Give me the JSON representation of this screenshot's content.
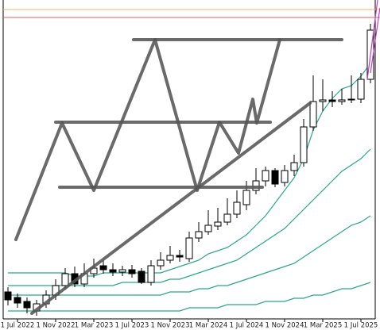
{
  "chart_data": {
    "type": "candlestick",
    "ylim": [
      0,
      100
    ],
    "xtick_labels": [
      "1 Jul 2022",
      "1 Nov 2022",
      "1 Mar 2023",
      "1 Jul 2023",
      "1 Nov 2023",
      "1 Mar 2024",
      "1 Jul 2024",
      "1 Nov 2024",
      "1 Mar 2025",
      "1 Jul 2025"
    ],
    "candles": {
      "open": [
        8,
        6.25,
        5,
        2,
        4.25,
        7,
        10,
        13.75,
        10.5,
        13.75,
        16.25,
        15,
        14.25,
        15,
        14.5,
        11,
        16.25,
        18,
        19.5,
        18.5,
        25,
        27,
        28.75,
        30,
        32.5,
        35.5,
        40,
        43,
        46.25,
        42.5,
        46.25,
        48.75,
        60,
        68,
        68.5,
        68,
        68.5,
        68.75,
        75
      ],
      "high": [
        9.5,
        7.5,
        6.25,
        5.5,
        8.5,
        12,
        15.5,
        16,
        17,
        18.5,
        18,
        17,
        16.25,
        16.5,
        15.5,
        18,
        20.5,
        22.5,
        21.25,
        27,
        30,
        33.75,
        34.5,
        37.5,
        40,
        43,
        47,
        47.5,
        47,
        48,
        51.25,
        62.5,
        76.25,
        75,
        71.25,
        72,
        76.25,
        77,
        92.5
      ],
      "low": [
        3.75,
        3,
        1.25,
        0.5,
        3,
        5.5,
        8.75,
        9.5,
        9.5,
        12.5,
        13.75,
        13,
        13,
        12.5,
        10.5,
        10,
        15,
        17,
        17.5,
        17.5,
        23.75,
        26,
        27.5,
        29,
        31.25,
        33.75,
        38.75,
        41.25,
        41,
        41.25,
        44.5,
        47.5,
        58.75,
        65,
        66.25,
        67,
        67.5,
        67.5,
        73.75
      ],
      "close": [
        5.5,
        4.5,
        3,
        4.25,
        7,
        10,
        13.75,
        10.5,
        13.75,
        15.5,
        15,
        14.25,
        15,
        13.75,
        11,
        16.25,
        18,
        19.5,
        19,
        25,
        27,
        29,
        30,
        32.5,
        36.25,
        40,
        43,
        46.25,
        42,
        46.25,
        48.75,
        60,
        68,
        68.5,
        68,
        68.5,
        68.75,
        75,
        90.5
      ]
    },
    "bull_color": "#ffffff",
    "bear_color": "#000000",
    "lines": [
      {
        "color": "#2aa88a",
        "values": [
          14,
          14,
          14,
          14,
          14,
          14,
          14,
          13,
          13,
          13,
          14,
          14,
          14,
          14,
          14,
          14,
          14,
          15,
          16,
          17,
          18,
          20,
          21,
          22,
          24,
          26,
          29,
          32,
          36,
          40,
          44,
          50,
          59,
          65,
          69,
          72,
          73,
          76,
          80
        ]
      },
      {
        "color": "#2aa88a",
        "values": [
          10,
          10,
          10,
          10,
          10,
          10,
          10,
          10,
          10,
          10,
          10,
          10,
          11,
          11,
          11,
          11,
          11,
          12,
          12,
          13,
          14,
          15,
          16,
          17,
          18,
          20,
          22,
          24,
          26,
          28,
          31,
          34,
          37,
          40,
          43,
          46,
          48,
          50,
          53
        ]
      },
      {
        "color": "#2aa88a",
        "values": [
          7,
          7,
          7,
          7,
          7,
          7,
          7,
          7,
          7,
          7,
          7,
          7,
          7,
          7,
          7,
          7,
          7,
          8,
          8,
          8,
          9,
          9,
          10,
          10,
          11,
          12,
          13,
          14,
          15,
          16,
          17,
          19,
          21,
          23,
          25,
          27,
          29,
          30,
          32
        ]
      },
      {
        "color": "#2aa88a",
        "values": [
          2,
          2,
          2,
          2,
          2,
          2,
          2,
          2,
          2,
          2,
          2,
          2,
          2,
          2,
          2,
          2,
          2,
          2,
          2,
          3,
          3,
          3,
          3,
          4,
          4,
          4,
          4,
          5,
          5,
          5,
          6,
          6,
          7,
          7,
          8,
          9,
          9,
          10,
          11
        ]
      }
    ]
  }
}
